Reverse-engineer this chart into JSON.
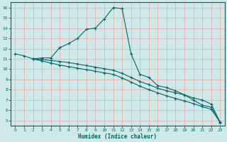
{
  "xlabel": "Humidex (Indice chaleur)",
  "ylabel": "",
  "bg_color": "#cfe8e8",
  "grid_color": "#e8b0b0",
  "line_color": "#006868",
  "xlim": [
    -0.5,
    23.5
  ],
  "ylim": [
    4.5,
    16.5
  ],
  "xticks": [
    0,
    1,
    2,
    3,
    4,
    5,
    6,
    7,
    8,
    9,
    10,
    11,
    12,
    13,
    14,
    15,
    16,
    17,
    18,
    19,
    20,
    21,
    22,
    23
  ],
  "yticks": [
    5,
    6,
    7,
    8,
    9,
    10,
    11,
    12,
    13,
    14,
    15,
    16
  ],
  "curve1_x": [
    0,
    1,
    2,
    3,
    4,
    5,
    6,
    7,
    8,
    9,
    10,
    11,
    12,
    13,
    14,
    15,
    16,
    17,
    18,
    19,
    20,
    21,
    22,
    23
  ],
  "curve1_y": [
    11.5,
    11.3,
    11.0,
    11.1,
    11.1,
    12.1,
    12.5,
    13.0,
    13.9,
    14.0,
    14.9,
    16.0,
    15.9,
    11.5,
    9.5,
    9.2,
    8.4,
    8.2,
    7.9,
    7.5,
    7.0,
    6.5,
    6.3,
    4.8
  ],
  "curve2_x": [
    2,
    3,
    4,
    5,
    6,
    7,
    8,
    9,
    10,
    11,
    12,
    13,
    14,
    15,
    16,
    17,
    18,
    19,
    20,
    21,
    22,
    23
  ],
  "curve2_y": [
    11.0,
    10.95,
    10.85,
    10.75,
    10.65,
    10.5,
    10.35,
    10.2,
    10.05,
    9.9,
    9.6,
    9.2,
    8.8,
    8.5,
    8.15,
    7.9,
    7.7,
    7.5,
    7.2,
    7.0,
    6.6,
    4.85
  ],
  "curve3_x": [
    2,
    3,
    4,
    5,
    6,
    7,
    8,
    9,
    10,
    11,
    12,
    13,
    14,
    15,
    16,
    17,
    18,
    19,
    20,
    21,
    22,
    23
  ],
  "curve3_y": [
    11.0,
    10.8,
    10.6,
    10.4,
    10.25,
    10.1,
    9.95,
    9.8,
    9.65,
    9.5,
    9.15,
    8.75,
    8.35,
    8.0,
    7.7,
    7.4,
    7.15,
    6.9,
    6.65,
    6.35,
    6.1,
    4.85
  ]
}
